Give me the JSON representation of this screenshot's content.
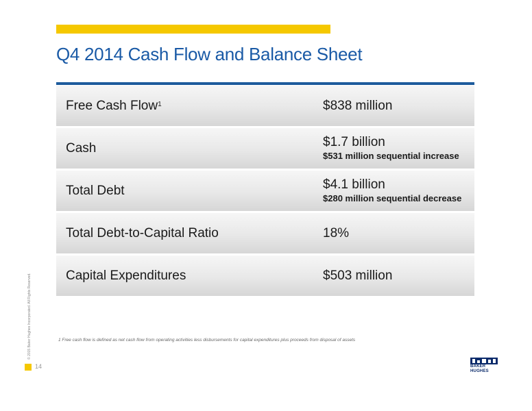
{
  "slide": {
    "title": "Q4 2014 Cash Flow and Balance Sheet",
    "page_number": "14",
    "copyright": "© 2015 Baker Hughes Incorporated. All Rights Reserved.",
    "footnote": "1 Free cash flow is defined as net cash flow from operating activities less disbursements for capital expenditures plus proceeds from disposal of assets",
    "logo": {
      "line1": "BAKER",
      "line2": "HUGHES"
    },
    "colors": {
      "accent_yellow": "#f5c800",
      "title_blue": "#1a5aa6",
      "rule_blue": "#1d5b9c"
    }
  },
  "table": {
    "rows": [
      {
        "label": "Free Cash Flow",
        "sup": "1",
        "value": "$838 million",
        "sub": ""
      },
      {
        "label": "Cash",
        "sup": "",
        "value": "$1.7 billion",
        "sub": "$531 million sequential  increase"
      },
      {
        "label": "Total Debt",
        "sup": "",
        "value": "$4.1 billion",
        "sub": "$280 million sequential decrease"
      },
      {
        "label": "Total Debt-to-Capital Ratio",
        "sup": "",
        "value": "18%",
        "sub": ""
      },
      {
        "label": "Capital Expenditures",
        "sup": "",
        "value": "$503 million",
        "sub": ""
      }
    ]
  }
}
